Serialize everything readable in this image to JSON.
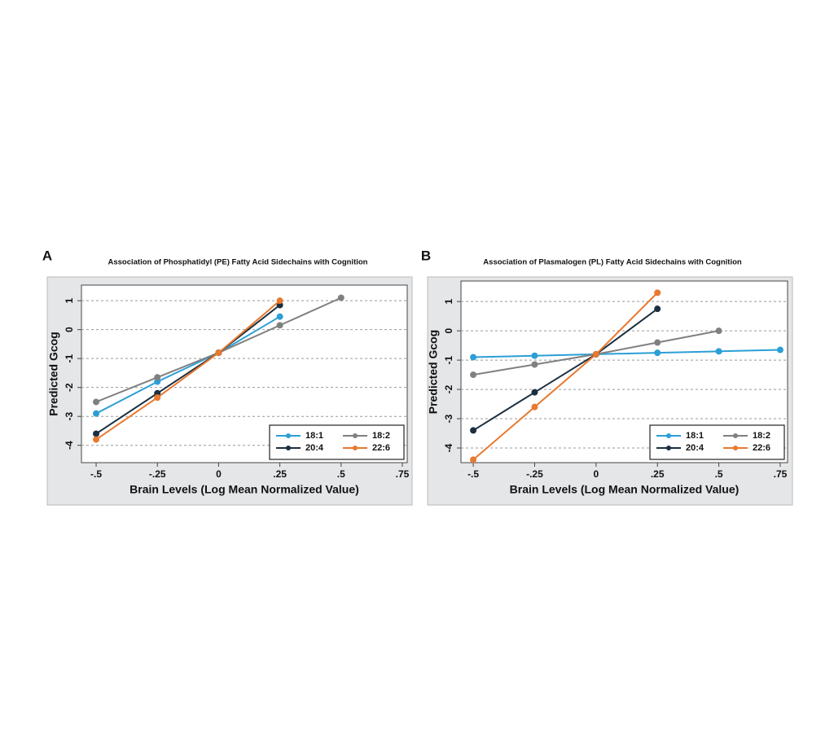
{
  "chart_data": [
    {
      "type": "line",
      "panel": "A",
      "title": "Association of Phosphatidyl (PE) Fatty Acid Sidechains with Cognition",
      "x_label": "Brain Levels (Log Mean Normalized Value)",
      "y_label": "Predicted Gcog",
      "xlim": [
        -0.56,
        0.77
      ],
      "ylim": [
        -4.6,
        1.54
      ],
      "xticks": [
        {
          "value": -0.5,
          "label": "-.5"
        },
        {
          "value": -0.25,
          "label": "-.25"
        },
        0,
        {
          "value": 0.25,
          "label": ".25"
        },
        {
          "value": 0.5,
          "label": ".5"
        },
        {
          "value": 0.75,
          "label": ".75"
        }
      ],
      "yticks": [
        1,
        0,
        -1,
        -2,
        -3,
        -4
      ],
      "grid": true,
      "legend": "lower right",
      "series": [
        {
          "name": "18:1",
          "color": "#2b9fd6",
          "x": [
            -0.5,
            -0.25,
            0,
            0.25
          ],
          "values": [
            -2.9,
            -1.8,
            -0.8,
            0.45
          ]
        },
        {
          "name": "18:2",
          "color": "#808080",
          "x": [
            -0.5,
            -0.25,
            0,
            0.25,
            0.5
          ],
          "values": [
            -2.5,
            -1.65,
            -0.8,
            0.15,
            1.1
          ]
        },
        {
          "name": "20:4",
          "color": "#1b2f40",
          "x": [
            -0.5,
            -0.25,
            0,
            0.25
          ],
          "values": [
            -3.6,
            -2.2,
            -0.8,
            0.85
          ]
        },
        {
          "name": "22:6",
          "color": "#e8792f",
          "x": [
            -0.5,
            -0.25,
            0,
            0.25
          ],
          "values": [
            -3.8,
            -2.35,
            -0.8,
            1.0
          ]
        }
      ]
    },
    {
      "type": "line",
      "panel": "B",
      "title": "Association of Plasmalogen (PL) Fatty Acid Sidechains with Cognition",
      "x_label": "Brain Levels (Log Mean Normalized Value)",
      "y_label": "Predicted Gcog",
      "xlim": [
        -0.55,
        0.78
      ],
      "ylim": [
        -4.5,
        1.7
      ],
      "xticks": [
        {
          "value": -0.5,
          "label": "-.5"
        },
        {
          "value": -0.25,
          "label": "-.25"
        },
        0,
        {
          "value": 0.25,
          "label": ".25"
        },
        {
          "value": 0.5,
          "label": ".5"
        },
        {
          "value": 0.75,
          "label": ".75"
        }
      ],
      "yticks": [
        1,
        0,
        -1,
        -2,
        -3,
        -4
      ],
      "grid": true,
      "legend": "lower right",
      "series": [
        {
          "name": "18:1",
          "color": "#2b9fd6",
          "x": [
            -0.5,
            -0.25,
            0,
            0.25,
            0.5,
            0.75
          ],
          "values": [
            -0.9,
            -0.85,
            -0.8,
            -0.75,
            -0.7,
            -0.65
          ]
        },
        {
          "name": "18:2",
          "color": "#808080",
          "x": [
            -0.5,
            -0.25,
            0,
            0.25,
            0.5
          ],
          "values": [
            -1.5,
            -1.15,
            -0.8,
            -0.4,
            0
          ]
        },
        {
          "name": "20:4",
          "color": "#1b2f40",
          "x": [
            -0.5,
            -0.25,
            0,
            0.25
          ],
          "values": [
            -3.4,
            -2.1,
            -0.8,
            0.75
          ]
        },
        {
          "name": "22:6",
          "color": "#e8792f",
          "x": [
            -0.5,
            -0.25,
            0,
            0.25
          ],
          "values": [
            -4.4,
            -2.6,
            -0.8,
            1.3
          ]
        }
      ]
    }
  ]
}
